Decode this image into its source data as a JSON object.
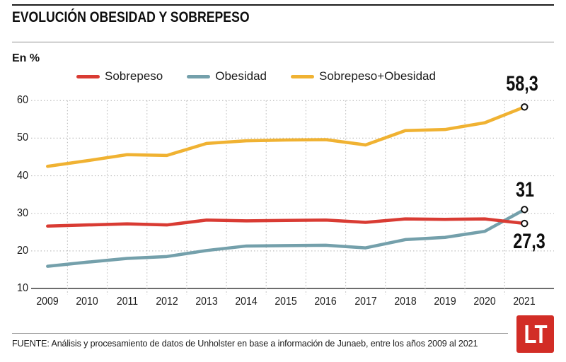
{
  "header": {
    "title": "EVOLUCIÓN OBESIDAD Y SOBREPESO",
    "unit_label": "En %"
  },
  "chart_data": {
    "type": "line",
    "x": [
      2009,
      2010,
      2011,
      2012,
      2013,
      2014,
      2015,
      2016,
      2017,
      2018,
      2019,
      2020,
      2021
    ],
    "series": [
      {
        "name": "Sobrepeso",
        "color": "#d93b33",
        "values": [
          26.6,
          26.9,
          27.2,
          26.9,
          28.2,
          28.0,
          28.1,
          28.2,
          27.6,
          28.5,
          28.4,
          28.5,
          27.3
        ],
        "end_label": "27,3"
      },
      {
        "name": "Obesidad",
        "color": "#74a0ab",
        "values": [
          15.9,
          17.0,
          18.0,
          18.5,
          20.1,
          21.3,
          21.4,
          21.5,
          20.8,
          23.0,
          23.6,
          25.2,
          31.0
        ],
        "end_label": "31"
      },
      {
        "name": "Sobrepeso+Obesidad",
        "color": "#f0b232",
        "values": [
          42.5,
          44.0,
          45.6,
          45.4,
          48.6,
          49.3,
          49.5,
          49.6,
          48.2,
          52.0,
          52.3,
          54.1,
          58.3
        ],
        "end_label": "58,3"
      }
    ],
    "ylim": [
      10,
      60
    ],
    "yticks": [
      10,
      20,
      30,
      40,
      50,
      60
    ],
    "grid": true,
    "legend_position": "top",
    "xlabel": "",
    "ylabel": "En %",
    "colors": {
      "grid": "#bfbfbf",
      "axis": "#3d3d3d",
      "marker_stroke": "#111111",
      "marker_fill": "#ffffff"
    }
  },
  "footer": {
    "source": "FUENTE: Análisis y procesamiento de datos de Unholster en base a información de Junaeb, entre los años 2009 al 2021",
    "logo_text": "LT",
    "logo_color": "#d22d26"
  }
}
